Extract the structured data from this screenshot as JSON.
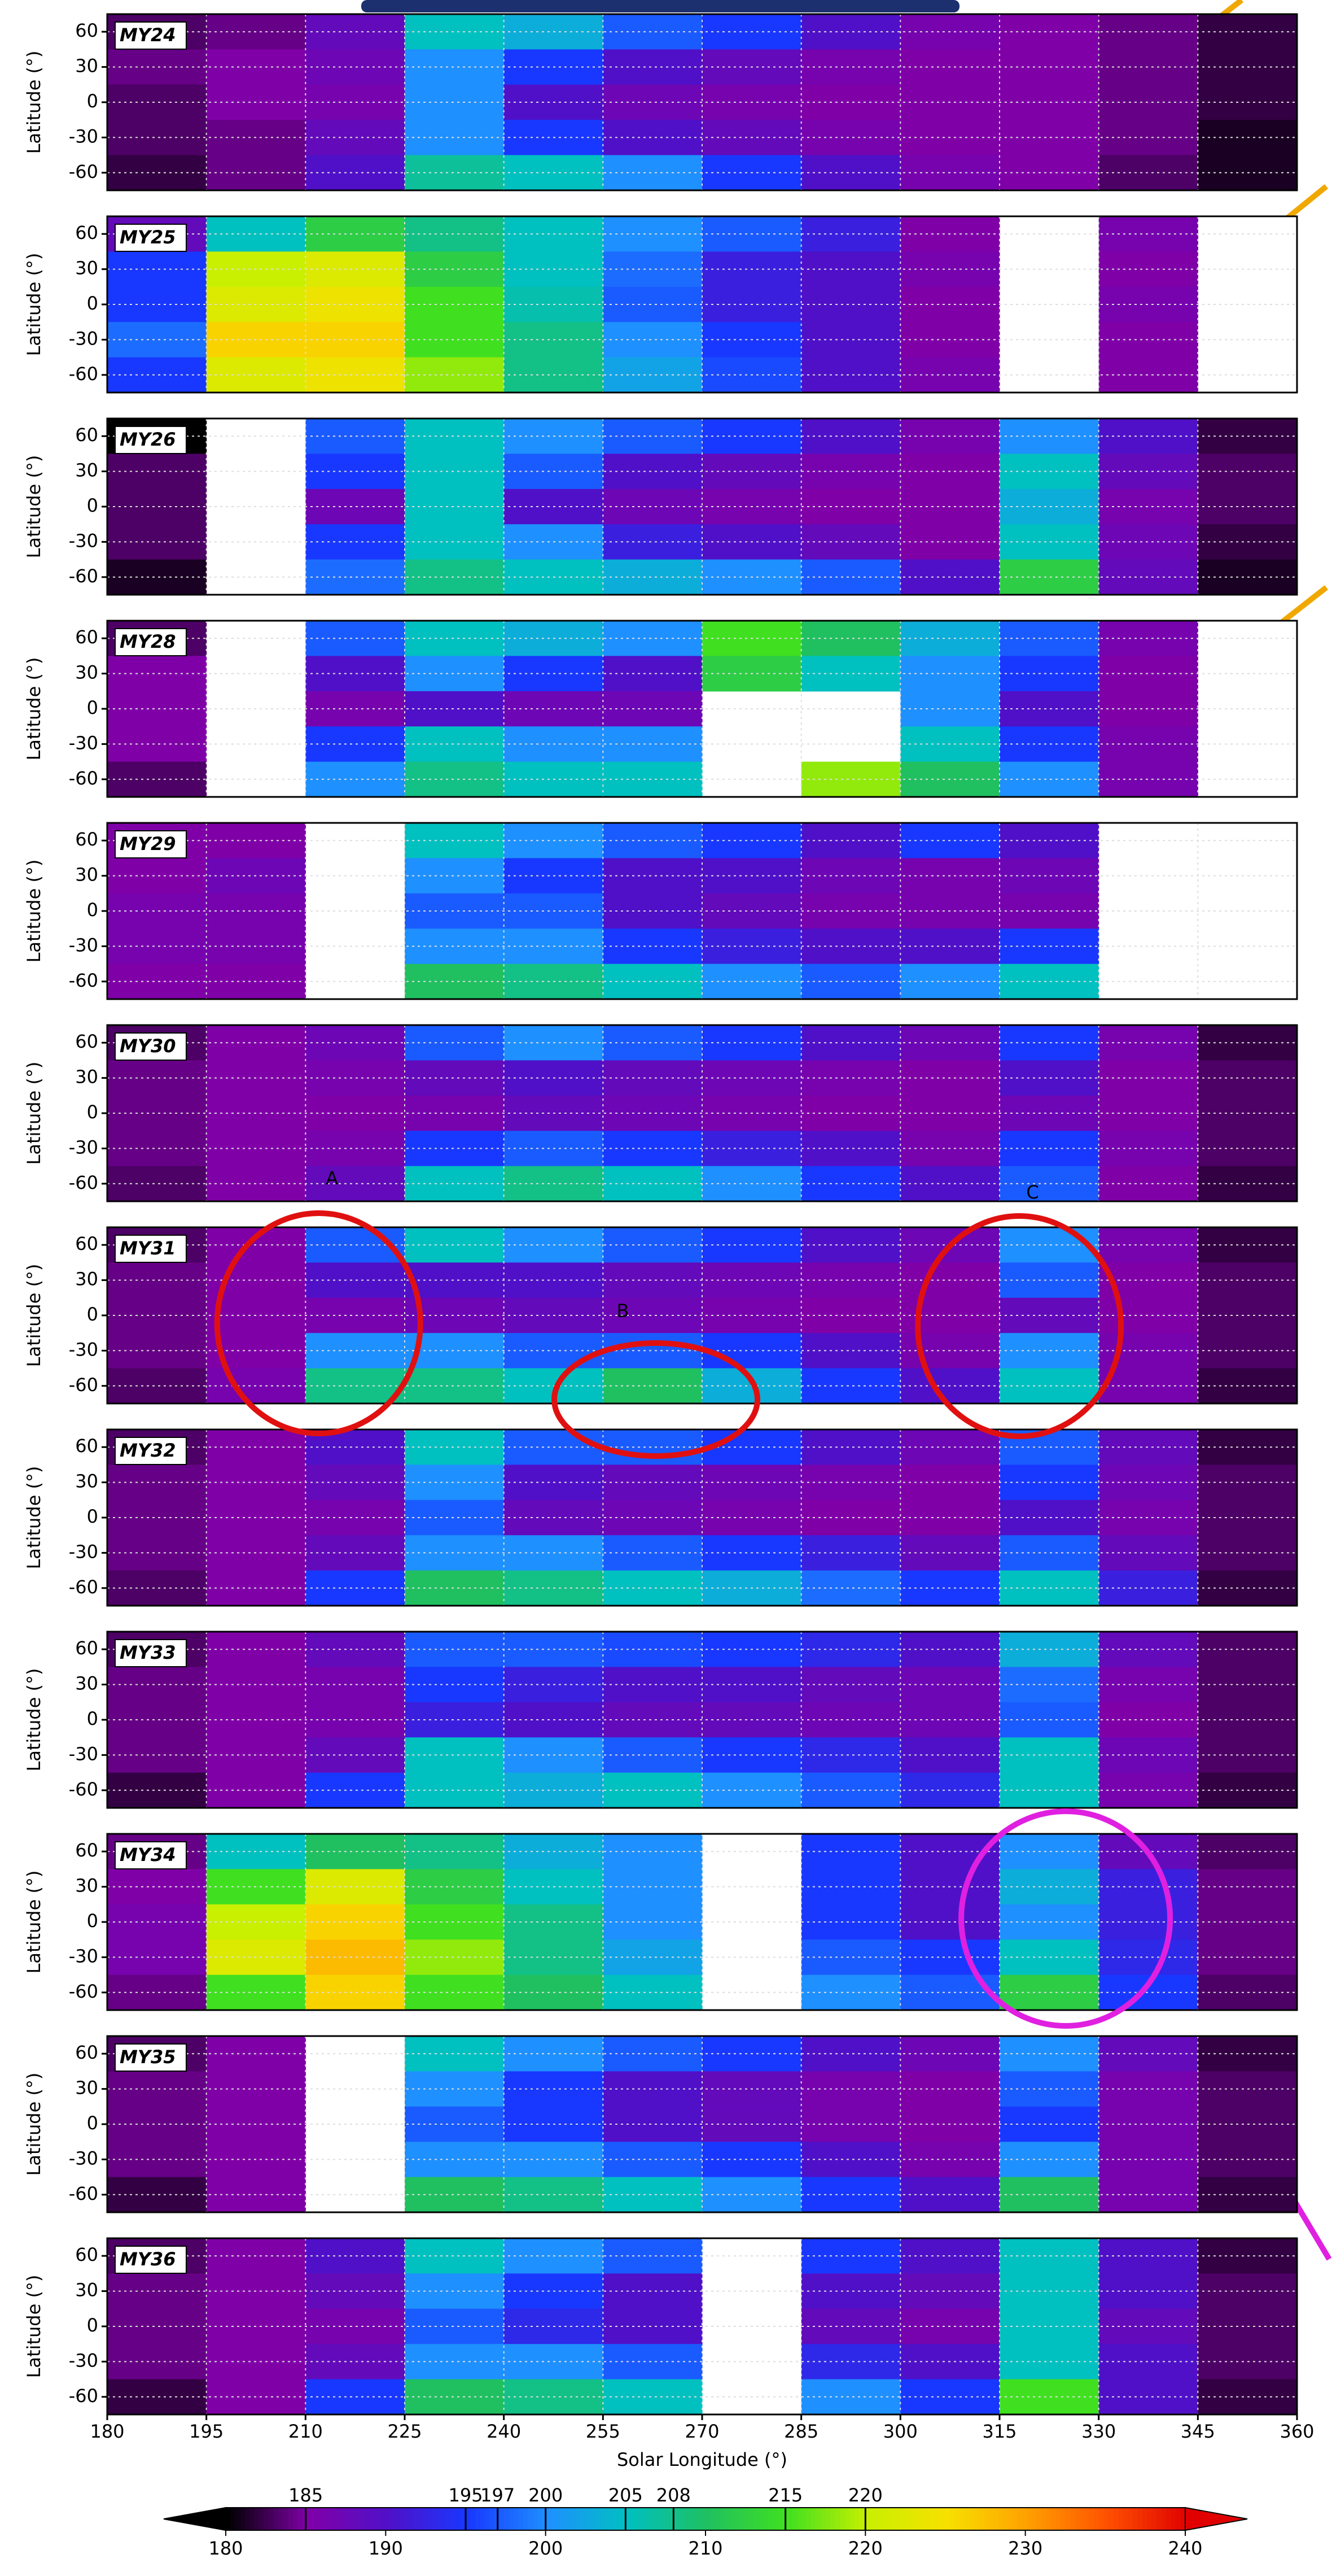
{
  "chart_data": {
    "type": "heatmap_panels",
    "xlabel": "Solar Longitude (°)",
    "ylabel": "Latitude (°)",
    "xlim": [
      180,
      360
    ],
    "xticks": [
      180,
      195,
      210,
      225,
      240,
      255,
      270,
      285,
      300,
      315,
      330,
      345,
      360
    ],
    "ylim": [
      -75,
      75
    ],
    "yticks": [
      -60,
      -30,
      0,
      30,
      60
    ],
    "grid": true,
    "x_edges": [
      180,
      195,
      210,
      225,
      240,
      255,
      270,
      285,
      300,
      315,
      330,
      345,
      360
    ],
    "y_edges": [
      75,
      45,
      15,
      -15,
      -45,
      -75
    ],
    "colormap": [
      "#000000",
      "#8000a8",
      "#5010c8",
      "#1838ff",
      "#1e90ff",
      "#00c0c0",
      "#20c060",
      "#40e020",
      "#c8f000",
      "#f8e000",
      "#ffa000",
      "#ff5000",
      "#e00000"
    ],
    "colorbar": {
      "lim": [
        180,
        240
      ],
      "ticks": [
        180,
        190,
        200,
        210,
        220,
        230,
        240
      ],
      "contour_levels": [
        185,
        195,
        197,
        200,
        205,
        208,
        215,
        220
      ]
    },
    "annotations": [
      "A",
      "B",
      "C"
    ],
    "panels": [
      {
        "title": "MY24",
        "values": [
          [
            183,
            184,
            188,
            205,
            203,
            197,
            195,
            190,
            186,
            185,
            184,
            182
          ],
          [
            184,
            185,
            187,
            200,
            195,
            190,
            188,
            186,
            185,
            185,
            184,
            182
          ],
          [
            183,
            185,
            186,
            200,
            190,
            187,
            186,
            185,
            185,
            185,
            184,
            182
          ],
          [
            183,
            184,
            188,
            200,
            195,
            190,
            188,
            186,
            185,
            185,
            184,
            181
          ],
          [
            182,
            184,
            190,
            207,
            205,
            200,
            195,
            190,
            186,
            185,
            183,
            181
          ]
        ]
      },
      {
        "title": "MY25",
        "values": [
          [
            188,
            205,
            212,
            208,
            205,
            200,
            197,
            192,
            185,
            null,
            186,
            null
          ],
          [
            195,
            220,
            222,
            212,
            205,
            198,
            192,
            190,
            186,
            null,
            185,
            null
          ],
          [
            195,
            222,
            224,
            215,
            206,
            197,
            192,
            190,
            185,
            null,
            186,
            null
          ],
          [
            198,
            226,
            226,
            215,
            208,
            200,
            195,
            190,
            185,
            null,
            185,
            null
          ],
          [
            195,
            222,
            224,
            218,
            208,
            202,
            196,
            190,
            186,
            null,
            185,
            null
          ]
        ]
      },
      {
        "title": "MY26",
        "values": [
          [
            180,
            null,
            197,
            205,
            200,
            197,
            195,
            190,
            186,
            200,
            190,
            182
          ],
          [
            183,
            null,
            195,
            205,
            197,
            190,
            188,
            186,
            185,
            205,
            188,
            183
          ],
          [
            183,
            null,
            187,
            205,
            190,
            187,
            186,
            185,
            185,
            203,
            186,
            183
          ],
          [
            183,
            null,
            195,
            205,
            200,
            192,
            190,
            188,
            185,
            205,
            187,
            182
          ],
          [
            181,
            null,
            198,
            208,
            205,
            203,
            200,
            197,
            190,
            212,
            188,
            181
          ]
        ]
      },
      {
        "title": "MY28",
        "values": [
          [
            183,
            null,
            197,
            205,
            203,
            200,
            215,
            210,
            203,
            197,
            186,
            null
          ],
          [
            185,
            null,
            190,
            200,
            195,
            190,
            212,
            205,
            200,
            195,
            185,
            null
          ],
          [
            185,
            null,
            186,
            190,
            187,
            187,
            null,
            null,
            200,
            190,
            185,
            null
          ],
          [
            185,
            null,
            195,
            205,
            200,
            200,
            null,
            null,
            205,
            195,
            186,
            null
          ],
          [
            183,
            null,
            200,
            208,
            205,
            205,
            null,
            218,
            210,
            200,
            186,
            null
          ]
        ]
      },
      {
        "title": "MY29",
        "values": [
          [
            185,
            185,
            null,
            205,
            200,
            197,
            195,
            190,
            195,
            190,
            null,
            null
          ],
          [
            185,
            187,
            null,
            200,
            195,
            190,
            190,
            187,
            186,
            187,
            null,
            null
          ],
          [
            186,
            186,
            null,
            197,
            197,
            190,
            188,
            186,
            186,
            186,
            null,
            null
          ],
          [
            186,
            186,
            null,
            200,
            200,
            195,
            192,
            190,
            190,
            195,
            null,
            null
          ],
          [
            185,
            185,
            null,
            210,
            208,
            205,
            200,
            197,
            200,
            205,
            null,
            null
          ]
        ]
      },
      {
        "title": "MY30",
        "values": [
          [
            183,
            185,
            187,
            197,
            200,
            197,
            195,
            190,
            187,
            195,
            186,
            182
          ],
          [
            184,
            185,
            186,
            188,
            190,
            188,
            187,
            186,
            185,
            190,
            185,
            183
          ],
          [
            184,
            185,
            185,
            186,
            188,
            187,
            186,
            185,
            185,
            187,
            185,
            183
          ],
          [
            184,
            185,
            186,
            195,
            197,
            195,
            192,
            190,
            186,
            195,
            186,
            183
          ],
          [
            183,
            185,
            188,
            205,
            208,
            205,
            200,
            195,
            190,
            197,
            185,
            182
          ]
        ]
      },
      {
        "title": "MY31",
        "values": [
          [
            183,
            185,
            197,
            205,
            200,
            197,
            195,
            190,
            187,
            200,
            186,
            182
          ],
          [
            184,
            185,
            190,
            190,
            190,
            188,
            187,
            186,
            185,
            197,
            185,
            183
          ],
          [
            184,
            185,
            186,
            187,
            188,
            187,
            186,
            185,
            185,
            188,
            185,
            183
          ],
          [
            184,
            185,
            200,
            200,
            197,
            197,
            195,
            190,
            186,
            200,
            186,
            183
          ],
          [
            183,
            186,
            208,
            208,
            205,
            210,
            203,
            195,
            190,
            205,
            186,
            182
          ]
        ]
      },
      {
        "title": "MY32",
        "values": [
          [
            183,
            185,
            190,
            205,
            197,
            197,
            195,
            190,
            187,
            197,
            188,
            182
          ],
          [
            184,
            185,
            188,
            200,
            190,
            188,
            187,
            186,
            185,
            195,
            187,
            183
          ],
          [
            184,
            185,
            186,
            197,
            188,
            187,
            186,
            185,
            185,
            190,
            186,
            183
          ],
          [
            184,
            185,
            188,
            200,
            200,
            197,
            195,
            192,
            188,
            197,
            188,
            183
          ],
          [
            183,
            185,
            195,
            210,
            208,
            205,
            203,
            198,
            195,
            205,
            192,
            182
          ]
        ]
      },
      {
        "title": "MY33",
        "values": [
          [
            183,
            185,
            188,
            197,
            197,
            196,
            195,
            193,
            190,
            203,
            188,
            183
          ],
          [
            184,
            185,
            186,
            195,
            192,
            190,
            190,
            188,
            187,
            198,
            186,
            183
          ],
          [
            184,
            185,
            186,
            192,
            190,
            188,
            188,
            187,
            187,
            197,
            185,
            183
          ],
          [
            184,
            185,
            188,
            205,
            200,
            197,
            195,
            193,
            190,
            205,
            187,
            183
          ],
          [
            182,
            185,
            195,
            205,
            203,
            205,
            200,
            197,
            193,
            205,
            186,
            182
          ]
        ]
      },
      {
        "title": "MY34",
        "values": [
          [
            184,
            205,
            210,
            208,
            203,
            200,
            null,
            195,
            190,
            200,
            188,
            183
          ],
          [
            185,
            215,
            222,
            212,
            205,
            200,
            null,
            195,
            190,
            203,
            192,
            184
          ],
          [
            186,
            220,
            226,
            215,
            208,
            200,
            null,
            195,
            190,
            200,
            192,
            184
          ],
          [
            186,
            222,
            228,
            218,
            208,
            202,
            null,
            197,
            195,
            205,
            193,
            184
          ],
          [
            184,
            215,
            226,
            215,
            210,
            205,
            null,
            200,
            197,
            212,
            195,
            183
          ]
        ]
      },
      {
        "title": "MY35",
        "values": [
          [
            183,
            185,
            null,
            205,
            200,
            197,
            195,
            190,
            187,
            200,
            188,
            182
          ],
          [
            184,
            185,
            null,
            200,
            195,
            190,
            188,
            186,
            185,
            197,
            186,
            183
          ],
          [
            184,
            185,
            null,
            197,
            195,
            190,
            188,
            186,
            185,
            195,
            186,
            183
          ],
          [
            184,
            185,
            null,
            200,
            200,
            197,
            195,
            190,
            186,
            200,
            186,
            183
          ],
          [
            182,
            185,
            null,
            210,
            208,
            205,
            200,
            195,
            190,
            210,
            186,
            182
          ]
        ]
      },
      {
        "title": "MY36",
        "values": [
          [
            183,
            185,
            190,
            205,
            200,
            197,
            null,
            195,
            190,
            205,
            190,
            182
          ],
          [
            184,
            185,
            188,
            200,
            195,
            190,
            null,
            190,
            188,
            205,
            190,
            183
          ],
          [
            184,
            185,
            186,
            197,
            193,
            190,
            null,
            188,
            186,
            205,
            188,
            183
          ],
          [
            184,
            185,
            188,
            200,
            200,
            197,
            null,
            193,
            190,
            205,
            190,
            183
          ],
          [
            182,
            185,
            195,
            210,
            208,
            205,
            null,
            200,
            195,
            215,
            190,
            182
          ]
        ]
      }
    ]
  }
}
